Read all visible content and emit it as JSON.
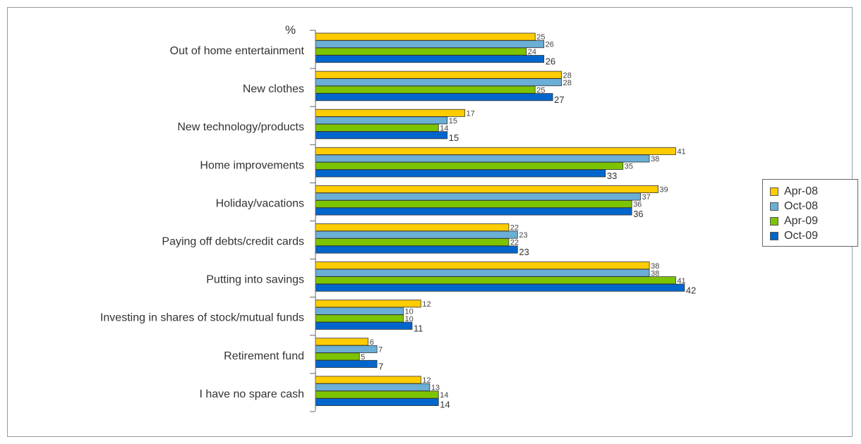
{
  "chart_data": {
    "type": "bar",
    "orientation": "horizontal",
    "unit_label": "%",
    "categories": [
      "Out of home entertainment",
      "New clothes",
      "New technology/products",
      "Home improvements",
      "Holiday/vacations",
      "Paying off debts/credit cards",
      "Putting into savings",
      "Investing in shares of stock/mutual funds",
      "Retirement fund",
      "I have no spare cash"
    ],
    "series": [
      {
        "name": "Apr-08",
        "color": "#FFCC00",
        "values": [
          25,
          28,
          17,
          41,
          39,
          22,
          38,
          12,
          6,
          12
        ]
      },
      {
        "name": "Oct-08",
        "color": "#6BAED6",
        "values": [
          26,
          28,
          15,
          38,
          37,
          23,
          38,
          10,
          7,
          13
        ]
      },
      {
        "name": "Apr-09",
        "color": "#7DC400",
        "values": [
          24,
          25,
          14,
          35,
          36,
          22,
          41,
          10,
          5,
          14
        ]
      },
      {
        "name": "Oct-09",
        "color": "#0066CC",
        "values": [
          26,
          27,
          15,
          33,
          36,
          23,
          42,
          11,
          7,
          14
        ]
      }
    ],
    "legend_position": "right",
    "grid": false
  }
}
